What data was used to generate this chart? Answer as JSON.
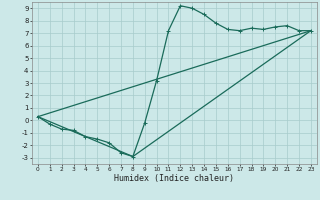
{
  "title": "",
  "xlabel": "Humidex (Indice chaleur)",
  "ylabel": "",
  "background_color": "#cce8e8",
  "grid_color": "#a8cccc",
  "line_color": "#1a6b5a",
  "xlim": [
    -0.5,
    23.5
  ],
  "ylim": [
    -3.5,
    9.5
  ],
  "xticks": [
    0,
    1,
    2,
    3,
    4,
    5,
    6,
    7,
    8,
    9,
    10,
    11,
    12,
    13,
    14,
    15,
    16,
    17,
    18,
    19,
    20,
    21,
    22,
    23
  ],
  "yticks": [
    -3,
    -2,
    -1,
    0,
    1,
    2,
    3,
    4,
    5,
    6,
    7,
    8,
    9
  ],
  "series1_x": [
    0,
    1,
    2,
    3,
    4,
    5,
    6,
    7,
    8,
    9,
    10,
    11,
    12,
    13,
    14,
    15,
    16,
    17,
    18,
    19,
    20,
    21,
    22,
    23
  ],
  "series1_y": [
    0.3,
    -0.3,
    -0.7,
    -0.8,
    -1.3,
    -1.5,
    -1.8,
    -2.6,
    -2.9,
    -0.2,
    3.2,
    7.2,
    9.2,
    9.0,
    8.5,
    7.8,
    7.3,
    7.2,
    7.4,
    7.3,
    7.5,
    7.6,
    7.2,
    7.2
  ],
  "series2_x": [
    0,
    23
  ],
  "series2_y": [
    0.3,
    7.2
  ],
  "series3_x": [
    0,
    8,
    23
  ],
  "series3_y": [
    0.3,
    -2.9,
    7.2
  ],
  "marker_size": 2.8,
  "linewidth": 0.9
}
